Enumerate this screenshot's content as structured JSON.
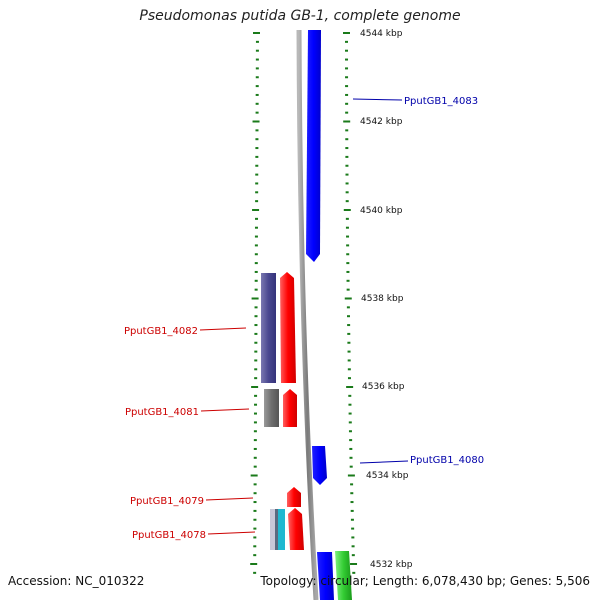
{
  "header": {
    "title": "Pseudomonas putida GB-1, complete genome"
  },
  "footer": {
    "accession": "Accession: NC_010322",
    "summary": "Topology: circular; Length: 6,078,430 bp; Genes: 5,506"
  },
  "colors": {
    "tick": "#1a7a1a",
    "backbone": "#8a8a8a",
    "plus_label": "#0000aa",
    "minus_label": "#cc0000"
  },
  "ticks": [
    "4544 kbp",
    "4542 kbp",
    "4540 kbp",
    "4538 kbp",
    "4536 kbp",
    "4534 kbp",
    "4532 kbp"
  ],
  "genes": [
    {
      "label": "PputGB1_4083",
      "strand": "plus",
      "color": "#0000ff"
    },
    {
      "label": "PputGB1_4082",
      "strand": "minus",
      "color": "#ff0000"
    },
    {
      "label": "PputGB1_4081",
      "strand": "minus",
      "color": "#ff0000"
    },
    {
      "label": "PputGB1_4080",
      "strand": "plus",
      "color": "#0000ff"
    },
    {
      "label": "PputGB1_4079",
      "strand": "minus",
      "color": "#ff0000"
    },
    {
      "label": "PputGB1_4078",
      "strand": "minus",
      "color": "#ff0000"
    }
  ]
}
